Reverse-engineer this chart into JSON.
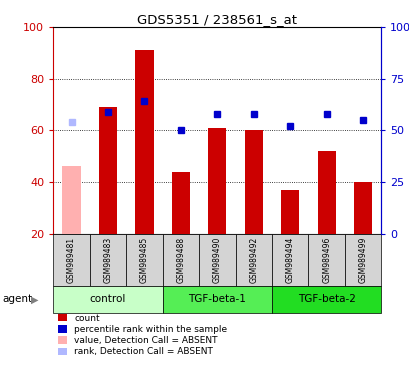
{
  "title": "GDS5351 / 238561_s_at",
  "samples": [
    "GSM989481",
    "GSM989483",
    "GSM989485",
    "GSM989488",
    "GSM989490",
    "GSM989492",
    "GSM989494",
    "GSM989496",
    "GSM989499"
  ],
  "counts": [
    46,
    69,
    91,
    44,
    61,
    60,
    37,
    52,
    40
  ],
  "ranks": [
    54,
    59,
    64,
    50,
    58,
    58,
    52,
    58,
    55
  ],
  "count_colors": [
    "#ffb0b0",
    "#cc0000",
    "#cc0000",
    "#cc0000",
    "#cc0000",
    "#cc0000",
    "#cc0000",
    "#cc0000",
    "#cc0000"
  ],
  "rank_colors": [
    "#b0b8ff",
    "#0000cc",
    "#0000cc",
    "#0000cc",
    "#0000cc",
    "#0000cc",
    "#0000cc",
    "#0000cc",
    "#0000cc"
  ],
  "groups": [
    {
      "label": "control",
      "start": 0,
      "end": 3,
      "color": "#c8ffc8"
    },
    {
      "label": "TGF-beta-1",
      "start": 3,
      "end": 6,
      "color": "#55ee55"
    },
    {
      "label": "TGF-beta-2",
      "start": 6,
      "end": 9,
      "color": "#22dd22"
    }
  ],
  "ylim_left": [
    20,
    100
  ],
  "ylim_right": [
    0,
    100
  ],
  "yticks_left": [
    20,
    40,
    60,
    80,
    100
  ],
  "ytick_labels_left": [
    "20",
    "40",
    "60",
    "80",
    "100"
  ],
  "yticks_right_vals": [
    0,
    25,
    50,
    75,
    100
  ],
  "ytick_labels_right": [
    "0",
    "25",
    "50",
    "75",
    "100%"
  ],
  "bar_width": 0.5,
  "background_color": "#ffffff",
  "plot_bg_color": "#ffffff",
  "sample_box_color": "#d4d4d4",
  "left_axis_color": "#cc0000",
  "right_axis_color": "#0000cc",
  "grid_linestyle": "dotted",
  "legend_items": [
    {
      "color": "#cc0000",
      "label": "count"
    },
    {
      "color": "#0000cc",
      "label": "percentile rank within the sample"
    },
    {
      "color": "#ffb0b0",
      "label": "value, Detection Call = ABSENT"
    },
    {
      "color": "#b0b8ff",
      "label": "rank, Detection Call = ABSENT"
    }
  ]
}
